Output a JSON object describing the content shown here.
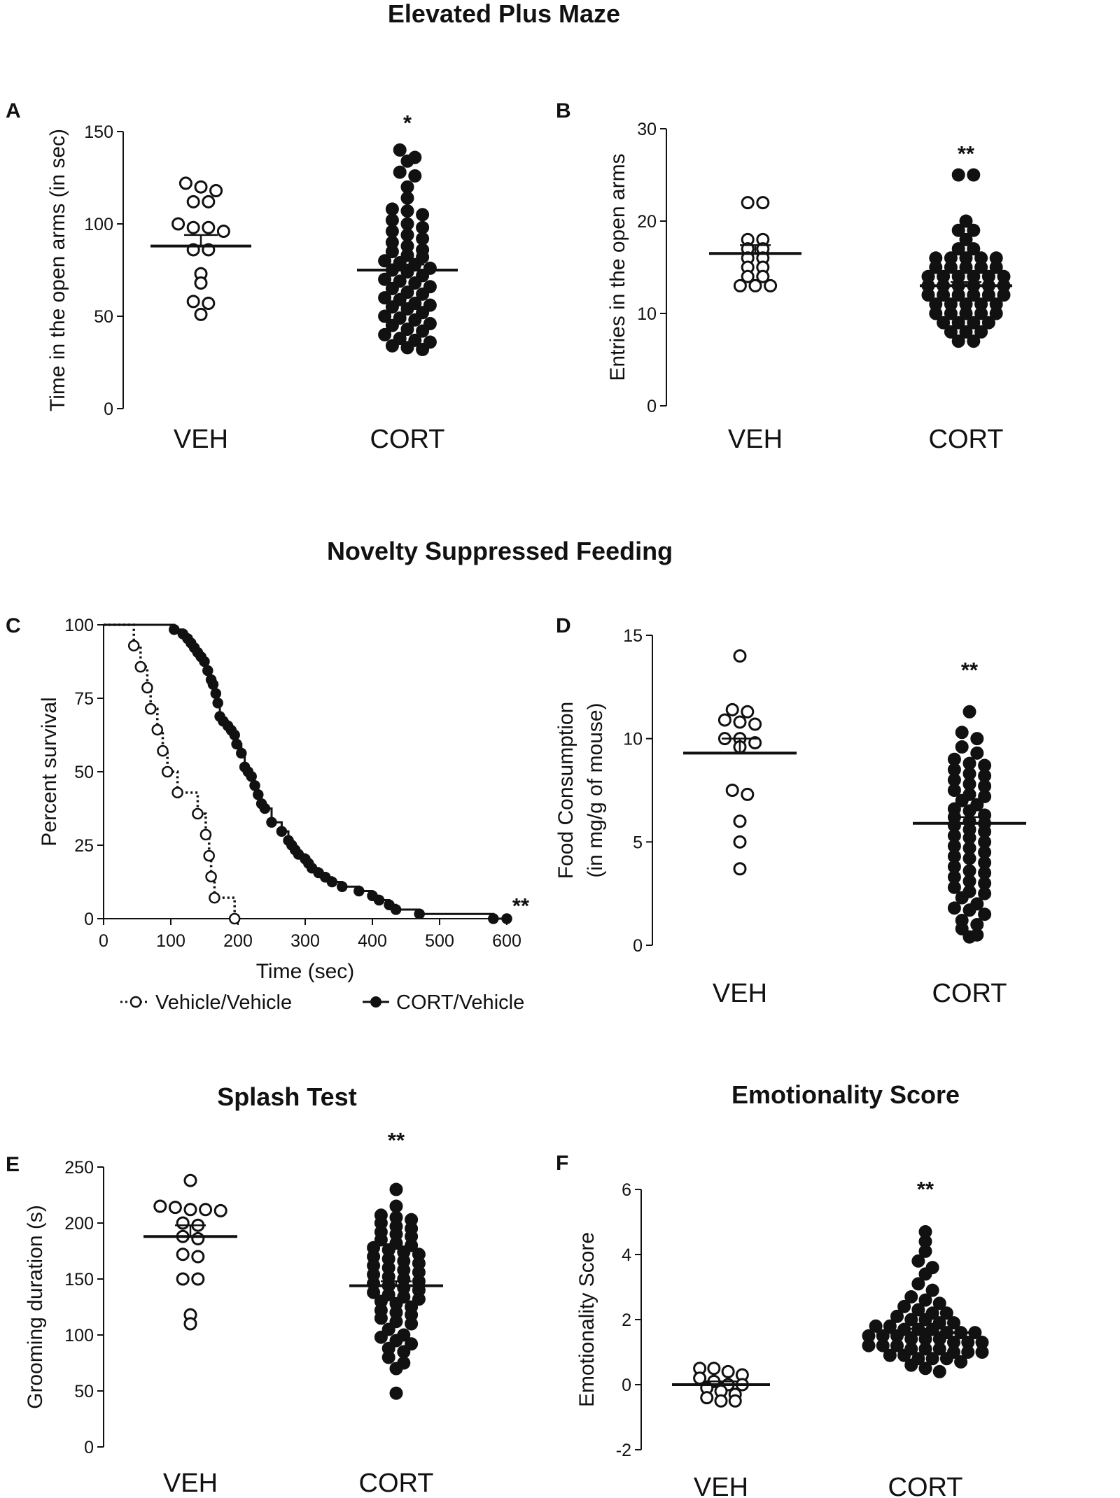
{
  "section_titles": {
    "epm": "Elevated Plus Maze",
    "nsf": "Novelty Suppressed Feeding",
    "splash": "Splash Test",
    "emo": "Emotionality Score"
  },
  "legend": {
    "vehicle": "Vehicle/Vehicle",
    "cort": "CORT/Vehicle"
  },
  "colors": {
    "ink": "#111111",
    "background": "#ffffff"
  },
  "chart_data": [
    {
      "id": "A",
      "panel_label": "A",
      "type": "scatter",
      "ylabel": "Time in the open arms (in sec)",
      "ylim": [
        0,
        150
      ],
      "yticks": [
        0,
        50,
        100,
        150
      ],
      "categories": [
        "VEH",
        "CORT"
      ],
      "significance": "*",
      "groups": [
        {
          "name": "VEH",
          "filled": false,
          "mean": 88,
          "sem": 6,
          "values": [
            122,
            118,
            120,
            112,
            112,
            100,
            98,
            98,
            96,
            86,
            86,
            73,
            68,
            57,
            58,
            51
          ]
        },
        {
          "name": "CORT",
          "filled": true,
          "mean": 75,
          "sem": 3,
          "values": [
            140,
            136,
            134,
            128,
            126,
            120,
            114,
            108,
            107,
            105,
            102,
            100,
            98,
            96,
            94,
            92,
            90,
            88,
            86,
            85,
            83,
            82,
            80,
            79,
            78,
            76,
            75,
            74,
            72,
            70,
            69,
            68,
            66,
            65,
            63,
            62,
            60,
            59,
            57,
            56,
            55,
            54,
            52,
            50,
            49,
            48,
            46,
            45,
            43,
            42,
            40,
            38,
            37,
            36,
            34,
            33,
            32
          ]
        }
      ]
    },
    {
      "id": "B",
      "panel_label": "B",
      "type": "scatter",
      "ylabel": "Entries in the open arms",
      "ylim": [
        0,
        30
      ],
      "yticks": [
        0,
        10,
        20,
        30
      ],
      "categories": [
        "VEH",
        "CORT"
      ],
      "significance": "**",
      "groups": [
        {
          "name": "VEH",
          "filled": false,
          "mean": 16.5,
          "sem": 0.9,
          "values": [
            22,
            22,
            18,
            18,
            17,
            17,
            16,
            16,
            15,
            15,
            14,
            14,
            13,
            13,
            13
          ]
        },
        {
          "name": "CORT",
          "filled": true,
          "mean": 13,
          "sem": 0.4,
          "values": [
            25,
            25,
            20,
            19,
            19,
            18,
            17,
            17,
            16,
            16,
            16,
            16,
            16,
            15,
            15,
            15,
            15,
            15,
            14,
            14,
            14,
            14,
            14,
            14,
            13,
            13,
            13,
            13,
            13,
            13,
            12,
            12,
            12,
            12,
            12,
            12,
            11,
            11,
            11,
            11,
            11,
            10,
            10,
            10,
            10,
            10,
            9,
            9,
            9,
            9,
            8,
            8,
            8,
            7,
            7
          ]
        }
      ]
    },
    {
      "id": "C",
      "panel_label": "C",
      "type": "line",
      "subtype": "survival-step",
      "xlabel": "Time (sec)",
      "ylabel": "Percent survival",
      "xlim": [
        0,
        600
      ],
      "ylim": [
        0,
        100
      ],
      "xticks": [
        0,
        100,
        200,
        300,
        400,
        500,
        600
      ],
      "yticks": [
        0,
        25,
        50,
        75,
        100
      ],
      "significance": "**",
      "series": [
        {
          "name": "Vehicle/Vehicle",
          "filled": false,
          "dashed": true,
          "x": [
            0,
            45,
            55,
            65,
            70,
            80,
            88,
            95,
            110,
            140,
            152,
            157,
            160,
            165,
            195
          ],
          "y": [
            100,
            92.9,
            85.7,
            78.6,
            71.4,
            64.3,
            57.1,
            50,
            42.9,
            35.7,
            28.6,
            21.4,
            14.3,
            7.1,
            0
          ]
        },
        {
          "name": "CORT/Vehicle",
          "filled": true,
          "dashed": false,
          "x": [
            0,
            105,
            118,
            125,
            130,
            135,
            140,
            145,
            150,
            155,
            160,
            163,
            167,
            170,
            173,
            178,
            185,
            190,
            195,
            198,
            205,
            210,
            215,
            220,
            225,
            230,
            235,
            240,
            250,
            265,
            275,
            280,
            285,
            290,
            300,
            305,
            310,
            320,
            330,
            340,
            355,
            380,
            400,
            410,
            425,
            435,
            470,
            580,
            600
          ],
          "y": [
            100,
            98.4,
            96.9,
            95.3,
            93.8,
            92.2,
            90.6,
            89.1,
            87.5,
            84.4,
            81.3,
            79.7,
            76.6,
            73.4,
            68.8,
            67.2,
            65.6,
            64.1,
            62.5,
            59.4,
            56.3,
            51.6,
            50,
            48.4,
            45.3,
            42.2,
            39.1,
            37.5,
            32.8,
            29.7,
            26.6,
            25,
            23.4,
            21.9,
            20.3,
            18.8,
            17.2,
            15.6,
            14.1,
            12.5,
            10.9,
            9.4,
            7.8,
            6.3,
            4.7,
            3.1,
            1.6,
            0,
            0
          ]
        }
      ]
    },
    {
      "id": "D",
      "panel_label": "D",
      "type": "scatter",
      "ylabel": "Food Consumption",
      "ylabel2": "(in mg/g of mouse)",
      "ylim": [
        0,
        15
      ],
      "yticks": [
        0,
        5,
        10,
        15
      ],
      "categories": [
        "VEH",
        "CORT"
      ],
      "significance": "**",
      "groups": [
        {
          "name": "VEH",
          "filled": false,
          "mean": 9.3,
          "sem": 0.7,
          "values": [
            14,
            11.4,
            11.3,
            10.9,
            10.8,
            10.7,
            10,
            10,
            9.8,
            9.6,
            7.5,
            7.3,
            6,
            5,
            3.7
          ]
        },
        {
          "name": "CORT",
          "filled": true,
          "mean": 5.9,
          "sem": 0.3,
          "values": [
            11.3,
            10.3,
            10,
            9.6,
            9.3,
            9,
            8.8,
            8.7,
            8.5,
            8.3,
            8.2,
            8,
            7.8,
            7.7,
            7.5,
            7.3,
            7.2,
            7,
            6.8,
            6.6,
            6.5,
            6.3,
            6.2,
            6,
            5.9,
            5.8,
            5.6,
            5.5,
            5.3,
            5.2,
            5,
            4.8,
            4.7,
            4.5,
            4.3,
            4.2,
            4,
            3.8,
            3.6,
            3.5,
            3.3,
            3.1,
            3,
            2.8,
            2.6,
            2.5,
            2.3,
            2,
            1.8,
            1.7,
            1.5,
            1.2,
            1,
            0.8,
            0.5,
            0.4
          ]
        }
      ]
    },
    {
      "id": "E",
      "panel_label": "E",
      "type": "scatter",
      "ylabel": "Grooming duration (s)",
      "ylim": [
        0,
        250
      ],
      "yticks": [
        0,
        50,
        100,
        150,
        200,
        250
      ],
      "categories": [
        "VEH",
        "CORT"
      ],
      "significance": "**",
      "groups": [
        {
          "name": "VEH",
          "filled": false,
          "mean": 188,
          "sem": 10,
          "values": [
            238,
            215,
            214,
            212,
            212,
            211,
            200,
            198,
            188,
            186,
            172,
            170,
            150,
            150,
            118,
            110
          ]
        },
        {
          "name": "CORT",
          "filled": true,
          "mean": 144,
          "sem": 4,
          "values": [
            230,
            215,
            207,
            205,
            203,
            200,
            197,
            195,
            192,
            190,
            188,
            185,
            182,
            180,
            178,
            176,
            174,
            172,
            170,
            168,
            166,
            164,
            162,
            160,
            158,
            156,
            154,
            152,
            150,
            148,
            146,
            144,
            142,
            140,
            138,
            136,
            134,
            132,
            130,
            128,
            125,
            122,
            120,
            118,
            115,
            112,
            110,
            105,
            100,
            98,
            95,
            92,
            88,
            85,
            80,
            75,
            70,
            48
          ]
        }
      ]
    },
    {
      "id": "F",
      "panel_label": "F",
      "type": "scatter",
      "ylabel": "Emotionality Score",
      "ylim": [
        -2,
        6
      ],
      "yticks": [
        -2,
        0,
        2,
        4,
        6
      ],
      "categories": [
        "VEH",
        "CORT"
      ],
      "significance": "**",
      "groups": [
        {
          "name": "VEH",
          "filled": false,
          "mean": 0,
          "sem": 0.1,
          "values": [
            0.5,
            0.5,
            0.4,
            0.3,
            0.2,
            0.1,
            0,
            0,
            -0.1,
            -0.2,
            -0.3,
            -0.4,
            -0.5,
            -0.5
          ]
        },
        {
          "name": "CORT",
          "filled": true,
          "mean": 1.6,
          "sem": 0.12,
          "values": [
            4.7,
            4.4,
            4.1,
            3.8,
            3.6,
            3.4,
            3.1,
            2.9,
            2.7,
            2.6,
            2.5,
            2.4,
            2.3,
            2.2,
            2.2,
            2.1,
            2,
            2,
            1.9,
            1.9,
            1.8,
            1.8,
            1.7,
            1.7,
            1.7,
            1.6,
            1.6,
            1.6,
            1.5,
            1.5,
            1.5,
            1.4,
            1.4,
            1.4,
            1.3,
            1.3,
            1.3,
            1.2,
            1.2,
            1.2,
            1.1,
            1.1,
            1.1,
            1,
            1,
            1,
            0.9,
            0.9,
            0.8,
            0.8,
            0.8,
            0.7,
            0.6,
            0.5,
            0.4
          ]
        }
      ]
    }
  ]
}
